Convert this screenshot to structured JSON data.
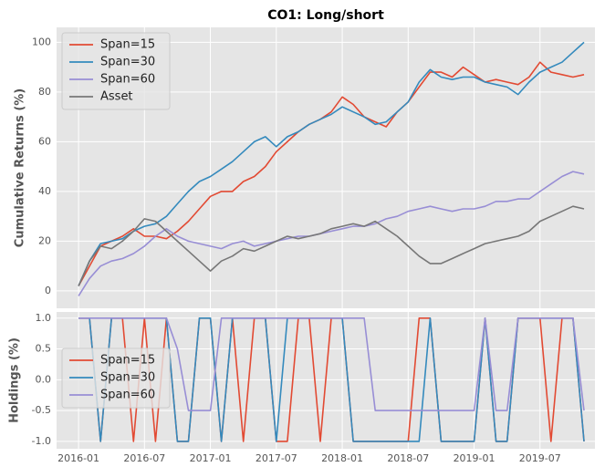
{
  "chart_data": [
    {
      "type": "line",
      "title": "CO1: Long/short",
      "ylabel": "Cumulative Returns (%)",
      "ylim": [
        -7,
        106
      ],
      "yticks": [
        0,
        20,
        40,
        60,
        80,
        100
      ],
      "grid": true,
      "legend": "upper left",
      "series": [
        {
          "name": "Span=15",
          "color": "#e24a33",
          "values": [
            2,
            10,
            18,
            20,
            22,
            25,
            22,
            22,
            21,
            24,
            28,
            33,
            38,
            40,
            40,
            44,
            46,
            50,
            56,
            60,
            64,
            67,
            69,
            72,
            78,
            75,
            70,
            68,
            66,
            72,
            76,
            82,
            88,
            88,
            86,
            90,
            87,
            84,
            85,
            84,
            83,
            86,
            92,
            88,
            87,
            86,
            87
          ]
        },
        {
          "name": "Span=30",
          "color": "#348abd",
          "values": [
            2,
            12,
            19,
            20,
            21,
            24,
            26,
            27,
            30,
            35,
            40,
            44,
            46,
            49,
            52,
            56,
            60,
            62,
            58,
            62,
            64,
            67,
            69,
            71,
            74,
            72,
            70,
            67,
            68,
            72,
            76,
            84,
            89,
            86,
            85,
            86,
            86,
            84,
            83,
            82,
            79,
            84,
            88,
            90,
            92,
            96,
            100
          ]
        },
        {
          "name": "Span=60",
          "color": "#988ed5",
          "values": [
            -2,
            5,
            10,
            12,
            13,
            15,
            18,
            22,
            25,
            22,
            20,
            19,
            18,
            17,
            19,
            20,
            18,
            19,
            20,
            21,
            22,
            22,
            23,
            24,
            25,
            26,
            26,
            27,
            29,
            30,
            32,
            33,
            34,
            33,
            32,
            33,
            33,
            34,
            36,
            36,
            37,
            37,
            40,
            43,
            46,
            48,
            47
          ]
        },
        {
          "name": "Asset",
          "color": "#777777",
          "values": [
            2,
            12,
            18,
            17,
            20,
            24,
            29,
            28,
            24,
            20,
            16,
            12,
            8,
            12,
            14,
            17,
            16,
            18,
            20,
            22,
            21,
            22,
            23,
            25,
            26,
            27,
            26,
            28,
            25,
            22,
            18,
            14,
            11,
            11,
            13,
            15,
            17,
            19,
            20,
            21,
            22,
            24,
            28,
            30,
            32,
            34,
            33
          ]
        }
      ]
    },
    {
      "type": "line",
      "ylabel": "Holdings (%)",
      "x": [
        "2016-01",
        "2016-02",
        "2016-03",
        "2016-04",
        "2016-05",
        "2016-06",
        "2016-07",
        "2016-08",
        "2016-09",
        "2016-10",
        "2016-11",
        "2016-12",
        "2017-01",
        "2017-02",
        "2017-03",
        "2017-04",
        "2017-05",
        "2017-06",
        "2017-07",
        "2017-08",
        "2017-09",
        "2017-10",
        "2017-11",
        "2017-12",
        "2018-01",
        "2018-02",
        "2018-03",
        "2018-04",
        "2018-05",
        "2018-06",
        "2018-07",
        "2018-08",
        "2018-09",
        "2018-10",
        "2018-11",
        "2018-12",
        "2019-01",
        "2019-02",
        "2019-03",
        "2019-04",
        "2019-05",
        "2019-06",
        "2019-07",
        "2019-08",
        "2019-09",
        "2019-10",
        "2019-11"
      ],
      "xlim": [
        "2015-11",
        "2019-12"
      ],
      "xticks": [
        "2016-01",
        "2016-07",
        "2017-01",
        "2017-07",
        "2018-01",
        "2018-07",
        "2019-01",
        "2019-07"
      ],
      "ylim": [
        -1.12,
        1.1
      ],
      "yticks": [
        {
          "value": 1,
          "label": "1.0"
        },
        0.5,
        {
          "value": 0,
          "label": "0.0"
        },
        -0.5,
        {
          "value": -1,
          "label": "-1.0"
        }
      ],
      "grid": true,
      "legend": "lower left",
      "series": [
        {
          "name": "Span=15",
          "color": "#e24a33",
          "values": [
            1,
            1,
            -1,
            1,
            1,
            -1,
            1,
            -1,
            1,
            -1,
            -1,
            1,
            1,
            -1,
            1,
            -1,
            1,
            1,
            -1,
            -1,
            1,
            1,
            -1,
            1,
            1,
            -1,
            -1,
            -1,
            -1,
            -1,
            -1,
            1,
            1,
            -1,
            -1,
            -1,
            -1,
            1,
            -1,
            -1,
            1,
            1,
            1,
            -1,
            1,
            1,
            -1
          ]
        },
        {
          "name": "Span=30",
          "color": "#348abd",
          "values": [
            1,
            1,
            -1,
            1,
            1,
            1,
            1,
            1,
            1,
            -1,
            -1,
            1,
            1,
            -1,
            1,
            1,
            1,
            1,
            -1,
            1,
            1,
            1,
            1,
            1,
            1,
            -1,
            -1,
            -1,
            -1,
            -1,
            -1,
            -1,
            1,
            -1,
            -1,
            -1,
            -1,
            1,
            -1,
            -1,
            1,
            1,
            1,
            1,
            1,
            1,
            -1
          ]
        },
        {
          "name": "Span=60",
          "color": "#988ed5",
          "values": [
            1,
            1,
            1,
            1,
            1,
            1,
            1,
            1,
            1,
            0.5,
            -0.5,
            -0.5,
            -0.5,
            1,
            1,
            1,
            1,
            1,
            1,
            1,
            1,
            1,
            1,
            1,
            1,
            1,
            1,
            -0.5,
            -0.5,
            -0.5,
            -0.5,
            -0.5,
            -0.5,
            -0.5,
            -0.5,
            -0.5,
            -0.5,
            1,
            -0.5,
            -0.5,
            1,
            1,
            1,
            1,
            1,
            1,
            -0.5
          ]
        }
      ]
    }
  ]
}
